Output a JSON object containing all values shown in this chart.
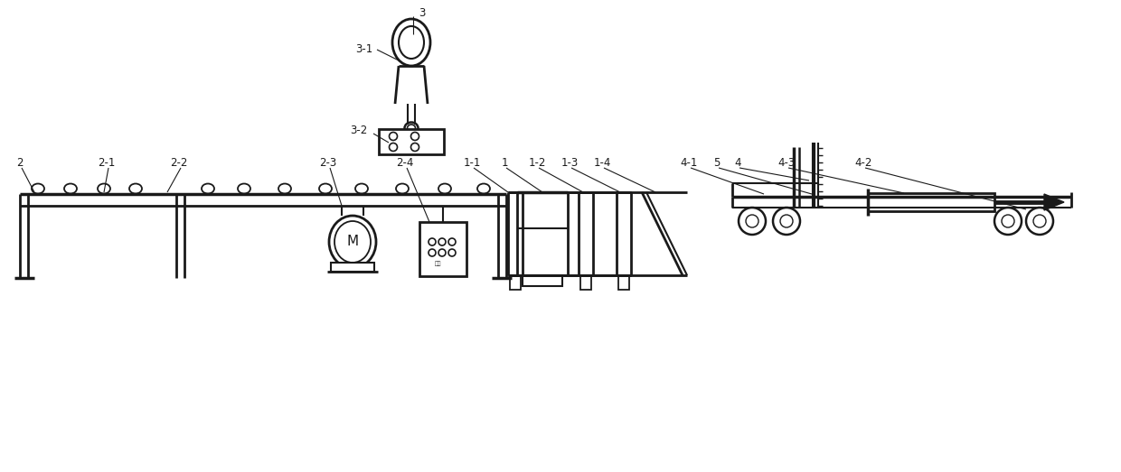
{
  "bg_color": "#ffffff",
  "line_color": "#1a1a1a",
  "lw": 1.5,
  "tlw": 0.8
}
